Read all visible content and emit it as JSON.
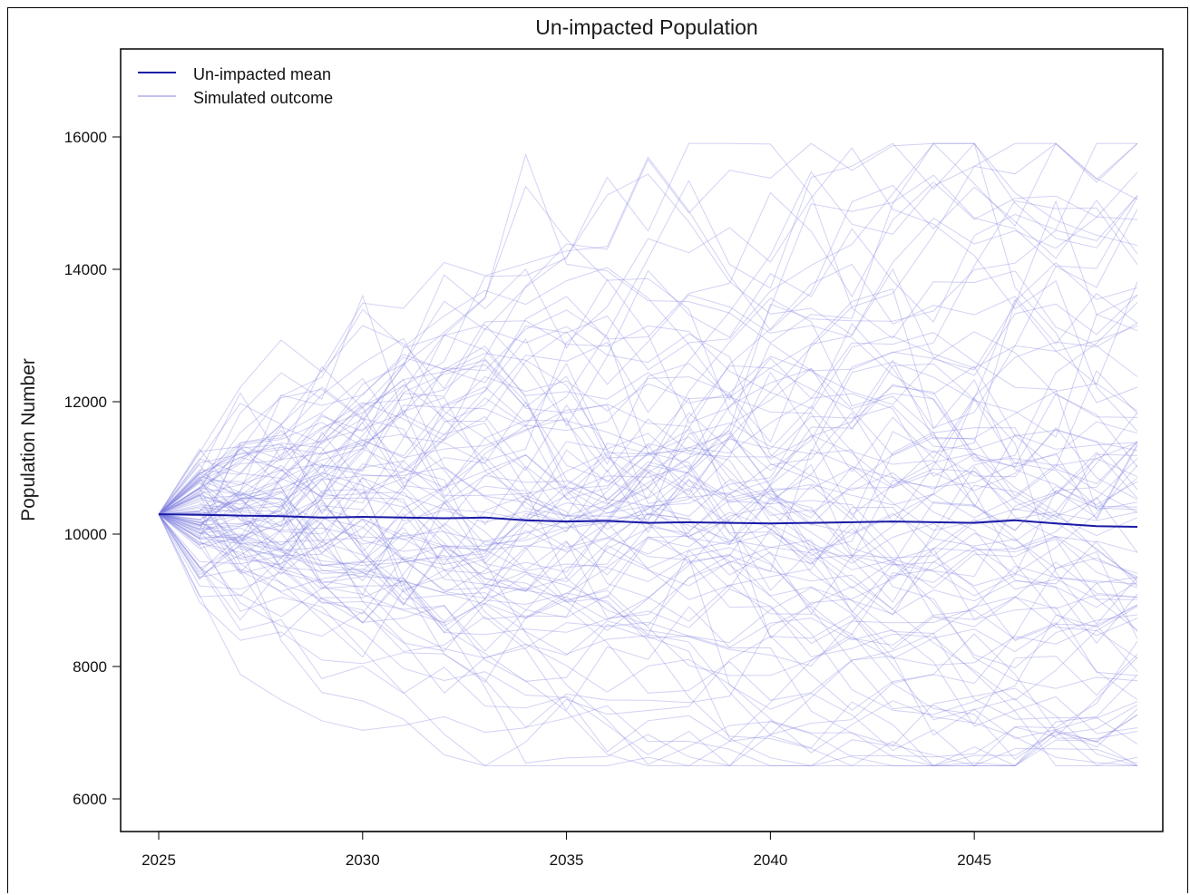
{
  "chart_data": {
    "type": "line",
    "title": "Un-impacted Population",
    "xlabel": "",
    "ylabel": "Population Number",
    "xlim": [
      2025,
      2049
    ],
    "ylim": [
      5500,
      17500
    ],
    "x_ticks": [
      2025,
      2030,
      2035,
      2040,
      2045
    ],
    "y_ticks": [
      6000,
      8000,
      10000,
      12000,
      14000,
      16000
    ],
    "grid": false,
    "legend": {
      "placement": "top-left",
      "entries": [
        {
          "label": "Un-impacted mean",
          "color": "#1a1aa6"
        },
        {
          "label": "Simulated outcome",
          "color": "#9a9ae6"
        }
      ]
    },
    "mean_series": {
      "name": "Un-impacted mean",
      "x": [
        2025,
        2026,
        2027,
        2028,
        2029,
        2030,
        2031,
        2032,
        2033,
        2034,
        2035,
        2036,
        2037,
        2038,
        2039,
        2040,
        2041,
        2042,
        2043,
        2044,
        2045,
        2046,
        2047,
        2048,
        2049
      ],
      "values": [
        10300,
        10290,
        10280,
        10270,
        10250,
        10260,
        10250,
        10240,
        10250,
        10210,
        10190,
        10200,
        10170,
        10180,
        10170,
        10160,
        10170,
        10180,
        10190,
        10180,
        10170,
        10210,
        10160,
        10120,
        10110
      ]
    },
    "simulated": {
      "name": "Simulated outcome",
      "count": 100,
      "start_value": 10300,
      "end_range": [
        6700,
        15800
      ]
    }
  }
}
